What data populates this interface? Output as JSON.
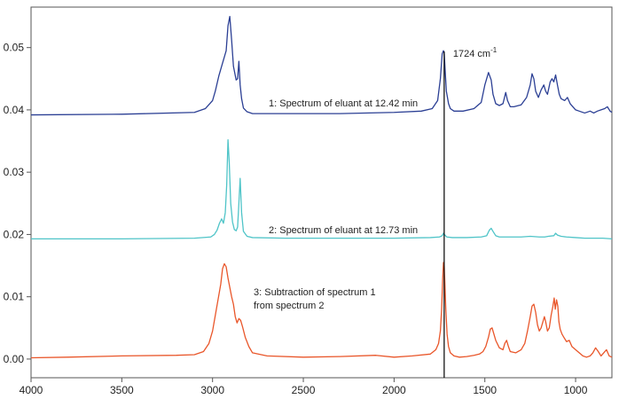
{
  "chart_data": {
    "type": "line",
    "title": "",
    "xlabel": "",
    "ylabel": "",
    "xlim": [
      4000,
      800
    ],
    "ylim": [
      -0.003,
      0.0565
    ],
    "x_ticks": [
      "4000",
      "3500",
      "3000",
      "2500",
      "2000",
      "1500",
      "1000"
    ],
    "y_ticks": [
      "0.00",
      "0.01",
      "0.02",
      "0.03",
      "0.04",
      "0.05"
    ],
    "grid": false,
    "colors": {
      "series1": "#2b3f94",
      "series2": "#4fc4c8",
      "series3": "#e9562a",
      "marker_line": "#000000"
    },
    "annotations": {
      "series1_label": "1: Spectrum of eluant at 12.42 min",
      "series2_label": "2: Spectrum of eluant at 12.73 min",
      "series3_label_line1": "3: Subtraction of spectrum 1",
      "series3_label_line2": "from spectrum 2",
      "marker_label_main": "1724 cm",
      "marker_label_sup": "-1"
    },
    "marker_line_x": 1724,
    "series": [
      {
        "key": "series1",
        "x": [
          4000,
          3500,
          3100,
          3040,
          3000,
          2985,
          2965,
          2950,
          2935,
          2925,
          2915,
          2905,
          2895,
          2885,
          2870,
          2862,
          2855,
          2848,
          2840,
          2830,
          2810,
          2780,
          2600,
          2300,
          2000,
          1850,
          1790,
          1760,
          1745,
          1735,
          1728,
          1724,
          1720,
          1712,
          1700,
          1690,
          1670,
          1620,
          1560,
          1520,
          1500,
          1480,
          1465,
          1455,
          1440,
          1420,
          1400,
          1385,
          1375,
          1360,
          1340,
          1300,
          1270,
          1250,
          1240,
          1230,
          1220,
          1205,
          1190,
          1175,
          1165,
          1155,
          1140,
          1130,
          1120,
          1110,
          1100,
          1090,
          1080,
          1060,
          1045,
          1030,
          1015,
          1000,
          980,
          950,
          920,
          900,
          880,
          860,
          840,
          825,
          810,
          800
        ],
        "y": [
          0.0392,
          0.0393,
          0.0396,
          0.0402,
          0.0415,
          0.043,
          0.0455,
          0.047,
          0.0485,
          0.0495,
          0.0535,
          0.055,
          0.0512,
          0.047,
          0.0448,
          0.045,
          0.0478,
          0.044,
          0.0418,
          0.0403,
          0.0397,
          0.0394,
          0.0394,
          0.0394,
          0.0396,
          0.0398,
          0.0402,
          0.0415,
          0.045,
          0.049,
          0.0495,
          0.0492,
          0.047,
          0.043,
          0.041,
          0.0402,
          0.0398,
          0.0398,
          0.0402,
          0.0412,
          0.044,
          0.046,
          0.0448,
          0.0425,
          0.041,
          0.0407,
          0.041,
          0.0428,
          0.0415,
          0.0405,
          0.0405,
          0.0408,
          0.042,
          0.044,
          0.0458,
          0.045,
          0.043,
          0.042,
          0.0432,
          0.044,
          0.043,
          0.0425,
          0.0445,
          0.045,
          0.0445,
          0.0456,
          0.044,
          0.0425,
          0.0418,
          0.0415,
          0.042,
          0.041,
          0.0405,
          0.04,
          0.0398,
          0.0395,
          0.0398,
          0.0395,
          0.0398,
          0.04,
          0.0402,
          0.0405,
          0.0398,
          0.0396
        ]
      },
      {
        "key": "series2",
        "x": [
          4000,
          3500,
          3100,
          3010,
          2990,
          2975,
          2962,
          2950,
          2940,
          2930,
          2922,
          2915,
          2908,
          2900,
          2890,
          2880,
          2870,
          2862,
          2855,
          2848,
          2840,
          2830,
          2810,
          2780,
          2600,
          2300,
          2000,
          1800,
          1750,
          1735,
          1728,
          1720,
          1710,
          1680,
          1600,
          1520,
          1490,
          1475,
          1465,
          1455,
          1440,
          1420,
          1380,
          1300,
          1250,
          1200,
          1170,
          1150,
          1120,
          1110,
          1100,
          1080,
          1050,
          1000,
          950,
          900,
          850,
          800
        ],
        "y": [
          0.0193,
          0.0193,
          0.0194,
          0.0196,
          0.02,
          0.0207,
          0.0218,
          0.0225,
          0.0218,
          0.0235,
          0.028,
          0.0352,
          0.0315,
          0.025,
          0.022,
          0.0208,
          0.0206,
          0.0212,
          0.025,
          0.029,
          0.0235,
          0.0205,
          0.0197,
          0.0195,
          0.0194,
          0.0194,
          0.0194,
          0.0195,
          0.0196,
          0.0198,
          0.0202,
          0.0199,
          0.0196,
          0.0195,
          0.0195,
          0.0196,
          0.0198,
          0.0207,
          0.021,
          0.0205,
          0.0198,
          0.0196,
          0.0196,
          0.0196,
          0.0197,
          0.0196,
          0.0196,
          0.0197,
          0.0198,
          0.0202,
          0.0199,
          0.0197,
          0.0196,
          0.0195,
          0.0194,
          0.0194,
          0.0194,
          0.0193
        ]
      },
      {
        "key": "series3",
        "x": [
          4000,
          3800,
          3500,
          3200,
          3100,
          3050,
          3020,
          3000,
          2985,
          2970,
          2955,
          2945,
          2935,
          2925,
          2915,
          2905,
          2895,
          2885,
          2875,
          2865,
          2855,
          2845,
          2835,
          2820,
          2800,
          2780,
          2700,
          2500,
          2300,
          2100,
          2000,
          1900,
          1800,
          1770,
          1755,
          1745,
          1738,
          1732,
          1728,
          1724,
          1720,
          1715,
          1708,
          1700,
          1690,
          1670,
          1640,
          1600,
          1560,
          1530,
          1510,
          1495,
          1480,
          1470,
          1460,
          1450,
          1440,
          1420,
          1400,
          1390,
          1380,
          1370,
          1360,
          1330,
          1300,
          1280,
          1265,
          1250,
          1240,
          1230,
          1220,
          1210,
          1200,
          1190,
          1180,
          1172,
          1165,
          1155,
          1145,
          1135,
          1125,
          1118,
          1112,
          1105,
          1098,
          1092,
          1085,
          1075,
          1065,
          1050,
          1035,
          1020,
          1000,
          980,
          960,
          940,
          920,
          905,
          890,
          875,
          860,
          845,
          830,
          815,
          800
        ],
        "y": [
          0.0002,
          0.0003,
          0.0005,
          0.0006,
          0.0007,
          0.0012,
          0.0025,
          0.0045,
          0.007,
          0.0095,
          0.012,
          0.0145,
          0.0153,
          0.0148,
          0.013,
          0.0115,
          0.01,
          0.0088,
          0.0068,
          0.0058,
          0.0065,
          0.0062,
          0.0052,
          0.0035,
          0.002,
          0.001,
          0.0005,
          0.0003,
          0.0004,
          0.0006,
          0.0003,
          0.0005,
          0.0008,
          0.0015,
          0.0025,
          0.0045,
          0.008,
          0.013,
          0.0155,
          0.015,
          0.012,
          0.008,
          0.004,
          0.002,
          0.001,
          0.0005,
          0.0003,
          0.0004,
          0.0006,
          0.0008,
          0.0012,
          0.002,
          0.0035,
          0.0048,
          0.005,
          0.004,
          0.003,
          0.0018,
          0.0015,
          0.0025,
          0.003,
          0.002,
          0.0012,
          0.001,
          0.0015,
          0.0025,
          0.0045,
          0.0068,
          0.0085,
          0.0088,
          0.0075,
          0.0055,
          0.0045,
          0.005,
          0.006,
          0.0068,
          0.006,
          0.0045,
          0.005,
          0.007,
          0.0085,
          0.0098,
          0.008,
          0.0095,
          0.0085,
          0.006,
          0.0048,
          0.004,
          0.0035,
          0.0028,
          0.003,
          0.002,
          0.0015,
          0.001,
          0.0005,
          0.0003,
          0.0005,
          0.001,
          0.0018,
          0.0012,
          0.0005,
          0.001,
          0.0015,
          0.0005,
          0.0003
        ]
      }
    ]
  }
}
